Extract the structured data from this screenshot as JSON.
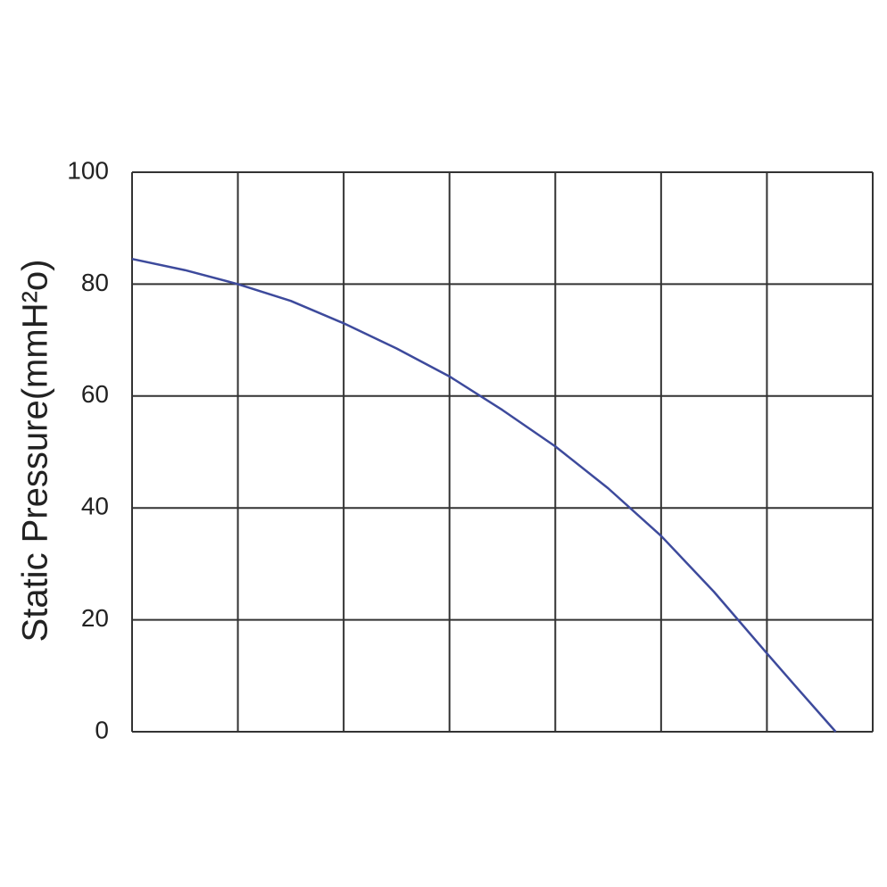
{
  "chart_data": {
    "type": "line",
    "y_label": "Static Pressure(mmH²o)",
    "x": [
      0,
      0.5,
      1,
      1.5,
      2,
      2.5,
      3,
      3.5,
      4,
      4.5,
      5,
      5.5,
      6,
      6.3,
      6.65
    ],
    "series": [
      {
        "color": "#3d4a9c",
        "values": [
          84.5,
          82.5,
          80,
          77,
          73,
          68.5,
          63.5,
          57.5,
          51,
          43.5,
          35,
          25,
          14,
          7.5,
          0
        ]
      }
    ],
    "xlim": [
      0,
      7
    ],
    "ylim": [
      0,
      100
    ],
    "yticks": [
      0,
      20,
      40,
      60,
      80,
      100
    ],
    "grid": true
  }
}
